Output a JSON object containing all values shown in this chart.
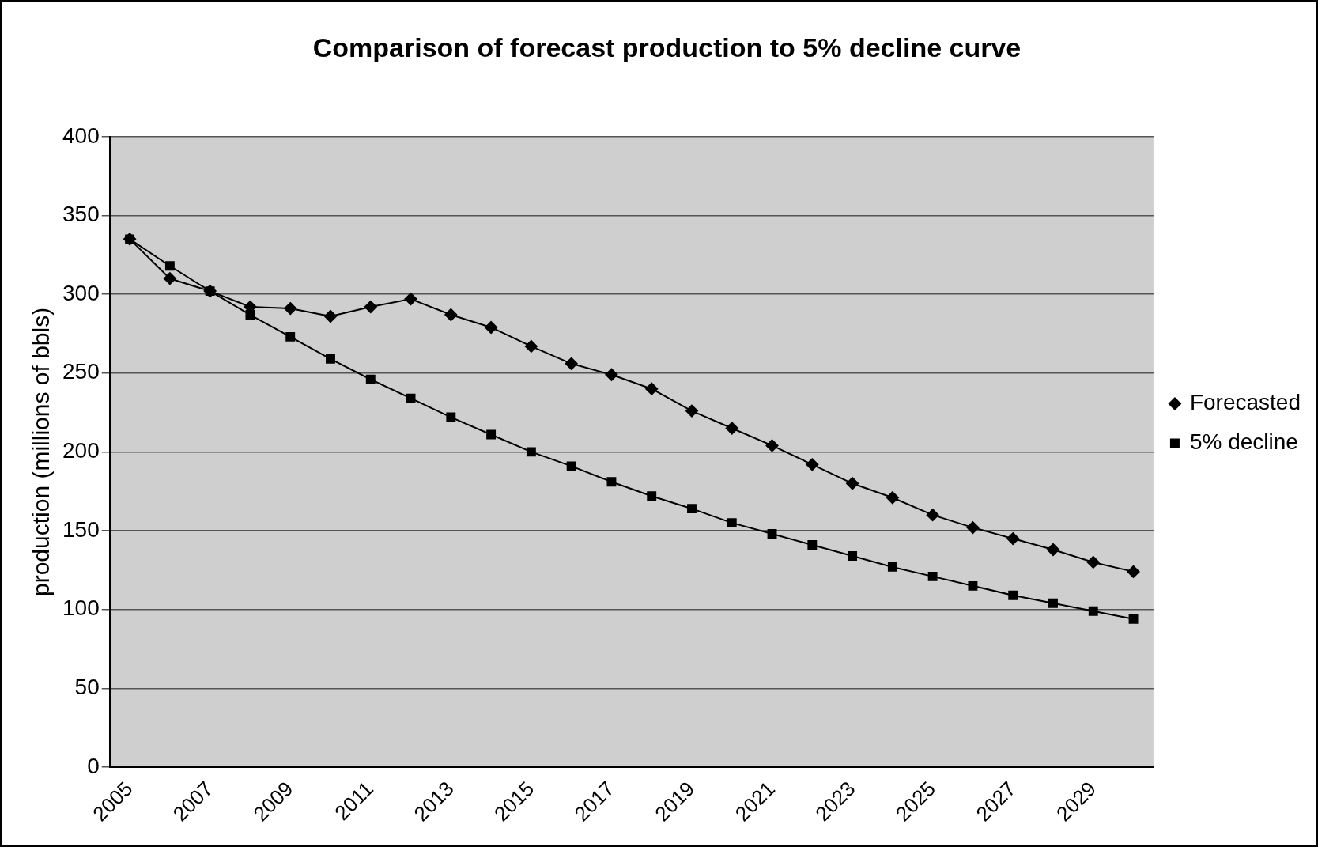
{
  "chart_data": {
    "type": "line",
    "title": "Comparison of forecast production to 5% decline curve",
    "ylabel": "production (millions of bbls)",
    "categories": [
      "2005",
      null,
      "2007",
      null,
      "2009",
      null,
      "2011",
      null,
      "2013",
      null,
      "2015",
      null,
      "2017",
      null,
      "2019",
      null,
      "2021",
      null,
      "2023",
      null,
      "2025",
      null,
      "2027",
      null,
      "2029",
      null
    ],
    "series": [
      {
        "name": "Forecasted",
        "color": "#000000",
        "marker": "diamond",
        "values": [
          335,
          310,
          302,
          292,
          291,
          286,
          292,
          297,
          287,
          279,
          267,
          256,
          249,
          240,
          226,
          215,
          204,
          192,
          180,
          171,
          160,
          152,
          145,
          138,
          130,
          124
        ]
      },
      {
        "name": "5% decline",
        "color": "#000000",
        "marker": "square",
        "values": [
          335,
          318,
          302,
          287,
          273,
          259,
          246,
          234,
          222,
          211,
          200,
          191,
          181,
          172,
          164,
          155,
          148,
          141,
          134,
          127,
          121,
          115,
          109,
          104,
          99,
          94
        ]
      }
    ],
    "ylim": [
      0,
      400
    ],
    "yticks": [
      0,
      50,
      100,
      150,
      200,
      250,
      300,
      350,
      400
    ],
    "grid": "y",
    "legend": "right",
    "line_style": "solid"
  }
}
